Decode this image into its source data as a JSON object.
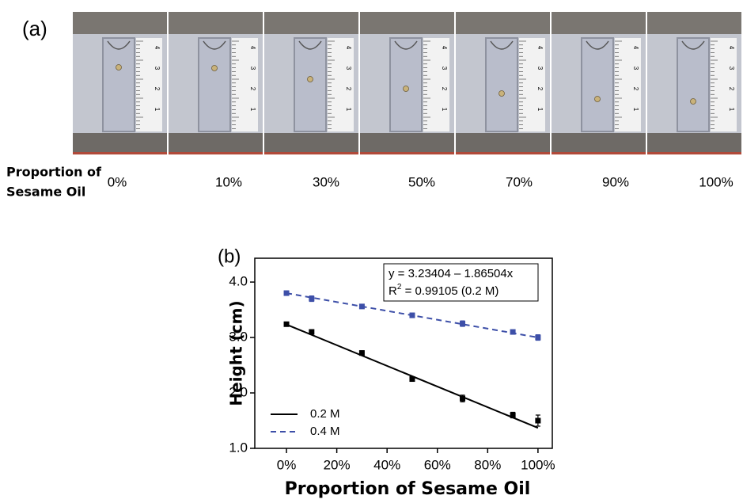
{
  "panel_a": {
    "label": "(a)",
    "row_label": [
      "Proportion of",
      "Sesame Oil"
    ],
    "labels": [
      "0%",
      "10%",
      "30%",
      "50%",
      "70%",
      "90%",
      "100%"
    ],
    "ruler_labels": [
      "4",
      "3",
      "2",
      "1"
    ]
  },
  "chart_data": {
    "type": "line",
    "panel_label": "(b)",
    "x_label": "Proportion of Sesame Oil",
    "y_label": "Height (cm)",
    "x": [
      0,
      10,
      30,
      50,
      70,
      90,
      100
    ],
    "xlim": [
      -12.6,
      105.7
    ],
    "xticks": [
      {
        "value": 0,
        "label": "0%"
      },
      {
        "value": 20,
        "label": "20%"
      },
      {
        "value": 40,
        "label": "40%"
      },
      {
        "value": 60,
        "label": "60%"
      },
      {
        "value": 80,
        "label": "80%"
      },
      {
        "value": 100,
        "label": "100%"
      }
    ],
    "ylim": [
      1.0,
      4.43
    ],
    "yticks": [
      {
        "value": 1,
        "label": "1.0"
      },
      {
        "value": 2,
        "label": "2.0"
      },
      {
        "value": 3,
        "label": "3.0"
      },
      {
        "value": 4,
        "label": "4.0"
      }
    ],
    "series": [
      {
        "name": "0.2 M",
        "color": "#000000",
        "dash": false,
        "values": [
          3.24,
          3.1,
          2.72,
          2.25,
          1.9,
          1.6,
          1.5
        ],
        "errors": [
          0.03,
          0.04,
          0.04,
          0.04,
          0.06,
          0.05,
          0.1
        ],
        "fit": {
          "x": [
            0,
            100
          ],
          "y": [
            3.234,
            1.369
          ]
        }
      },
      {
        "name": "0.4 M",
        "color": "#3d4fa8",
        "dash": true,
        "values": [
          3.8,
          3.7,
          3.56,
          3.4,
          3.25,
          3.1,
          3.0
        ],
        "errors": [
          0.04,
          0.05,
          0.03,
          0.04,
          0.05,
          0.03,
          0.05
        ],
        "fit": {
          "x": [
            0,
            100
          ],
          "y": [
            3.8,
            3.0
          ]
        }
      }
    ],
    "annotation": {
      "equation": "y = 3.23404 – 1.86504x",
      "r_symbol": "R",
      "r_exponent": "2",
      "r_value": " = 0.99105 (0.2 M)"
    },
    "legend": "lower left"
  }
}
